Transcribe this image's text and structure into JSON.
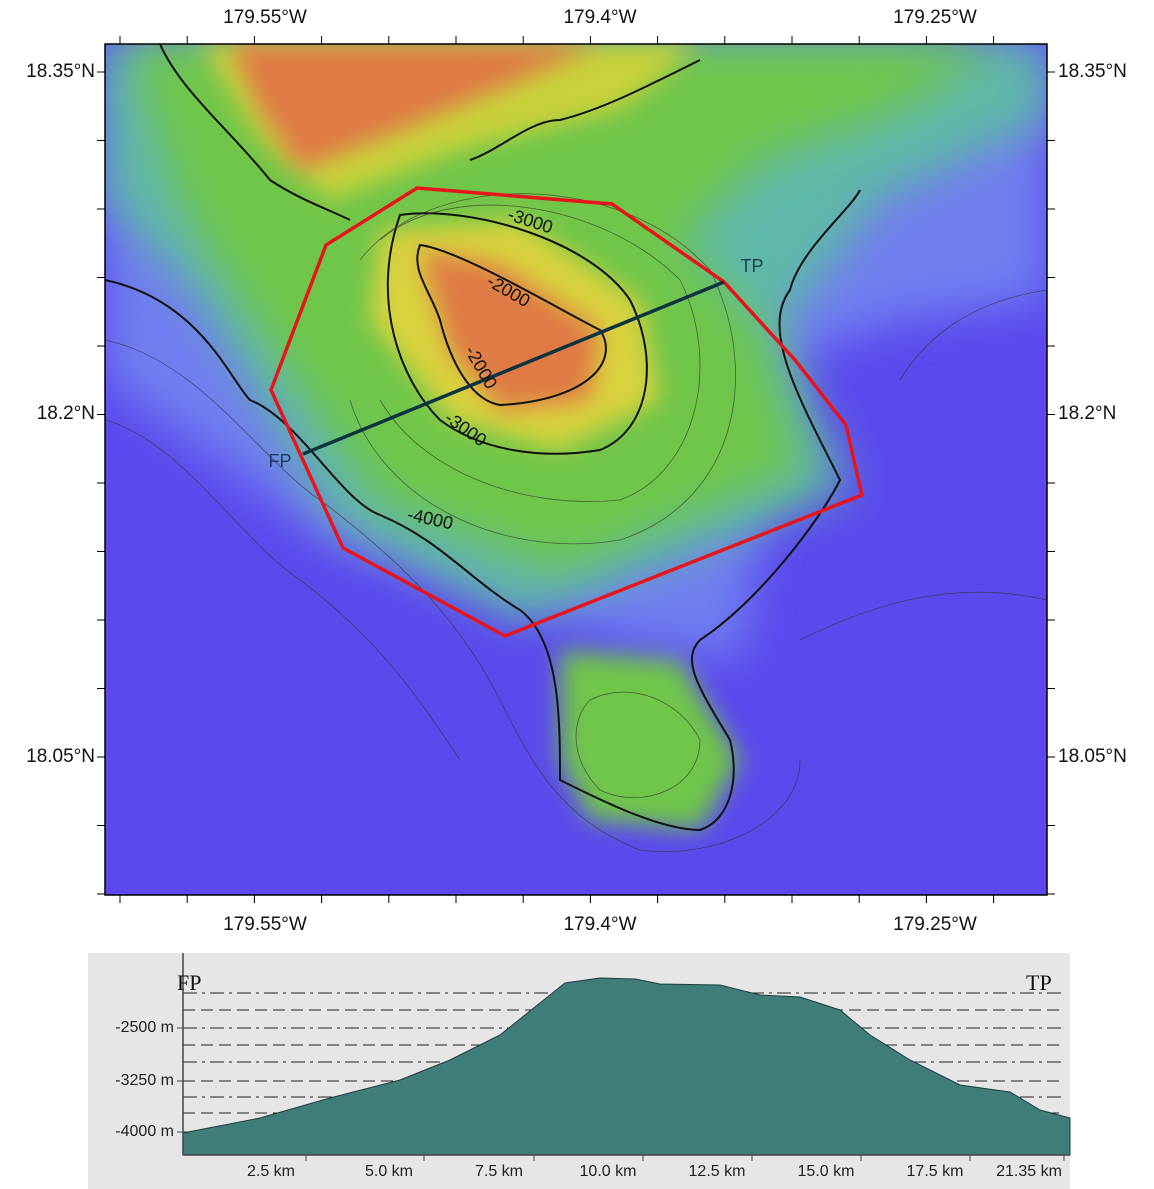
{
  "map": {
    "top_labels": [
      "179.55°W",
      "179.4°W",
      "179.25°W"
    ],
    "bottom_labels": [
      "179.55°W",
      "179.4°W",
      "179.25°W"
    ],
    "left_labels": [
      "18.35°N",
      "18.2°N",
      "18.05°N"
    ],
    "right_labels": [
      "18.35°N",
      "18.2°N",
      "18.05°N"
    ],
    "contour_labels": [
      "-3000",
      "-2000",
      "-2000",
      "-3000",
      "-4000"
    ],
    "profile_start": "FP",
    "profile_end": "TP"
  },
  "profile": {
    "start_label": "FP",
    "end_label": "TP",
    "y_labels": [
      "-2500 m",
      "-3250 m",
      "-4000 m"
    ],
    "x_labels": [
      "2.5 km",
      "5.0 km",
      "7.5 km",
      "10.0 km",
      "12.5 km",
      "15.0 km",
      "17.5 km",
      "21.35 km"
    ]
  }
}
